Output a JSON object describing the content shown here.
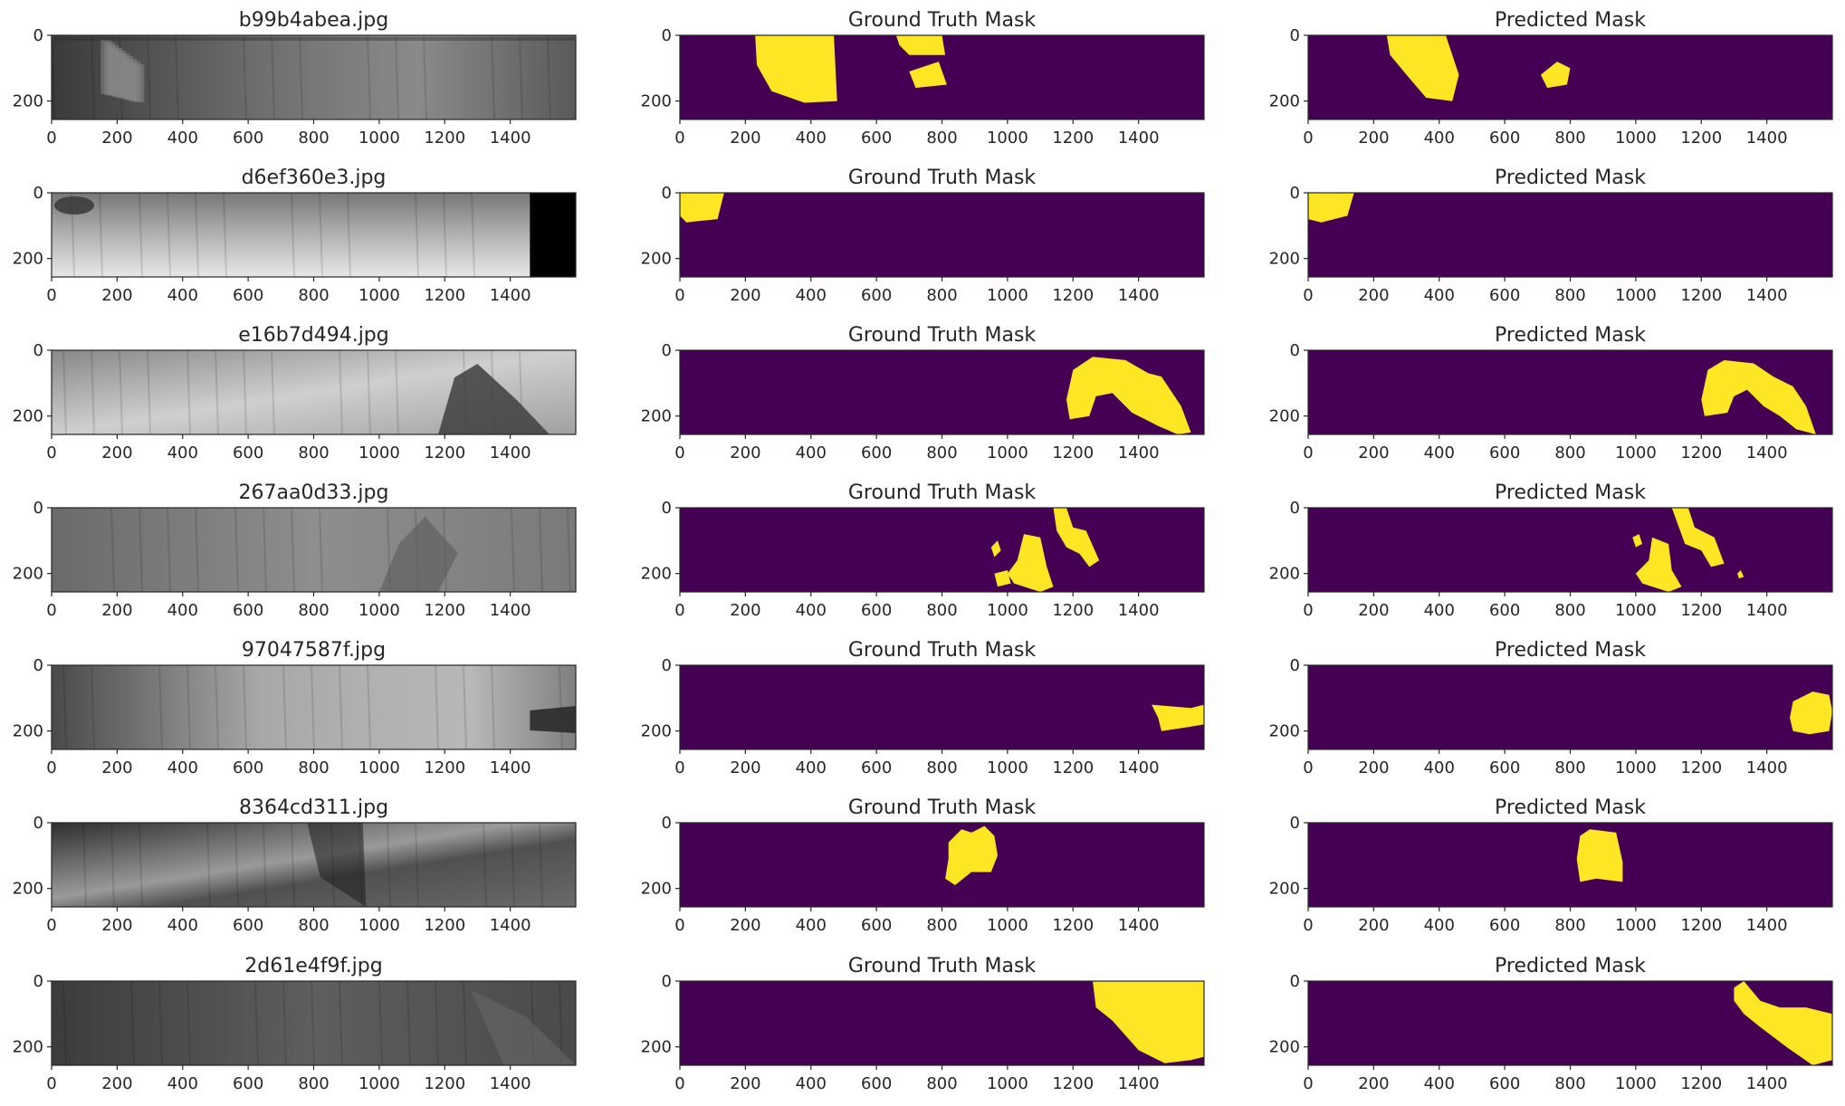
{
  "figure": {
    "columns": [
      "image",
      "ground_truth",
      "predicted"
    ],
    "x_ticks": [
      0,
      200,
      400,
      600,
      800,
      1000,
      1200,
      1400
    ],
    "y_ticks": [
      0,
      200
    ],
    "image_width": 1600,
    "image_height": 256,
    "colors": {
      "mask_background": "#440154",
      "mask_foreground": "#fde725",
      "axis": "#262626"
    },
    "rows": [
      {
        "filename": "b99b4abea.jpg",
        "gt_title": "Ground Truth Mask",
        "pred_title": "Predicted Mask"
      },
      {
        "filename": "d6ef360e3.jpg",
        "gt_title": "Ground Truth Mask",
        "pred_title": "Predicted Mask"
      },
      {
        "filename": "e16b7d494.jpg",
        "gt_title": "Ground Truth Mask",
        "pred_title": "Predicted Mask"
      },
      {
        "filename": "267aa0d33.jpg",
        "gt_title": "Ground Truth Mask",
        "pred_title": "Predicted Mask"
      },
      {
        "filename": "97047587f.jpg",
        "gt_title": "Ground Truth Mask",
        "pred_title": "Predicted Mask"
      },
      {
        "filename": "8364cd311.jpg",
        "gt_title": "Ground Truth Mask",
        "pred_title": "Predicted Mask"
      },
      {
        "filename": "2d61e4f9f.jpg",
        "gt_title": "Ground Truth Mask",
        "pred_title": "Predicted Mask"
      }
    ]
  }
}
